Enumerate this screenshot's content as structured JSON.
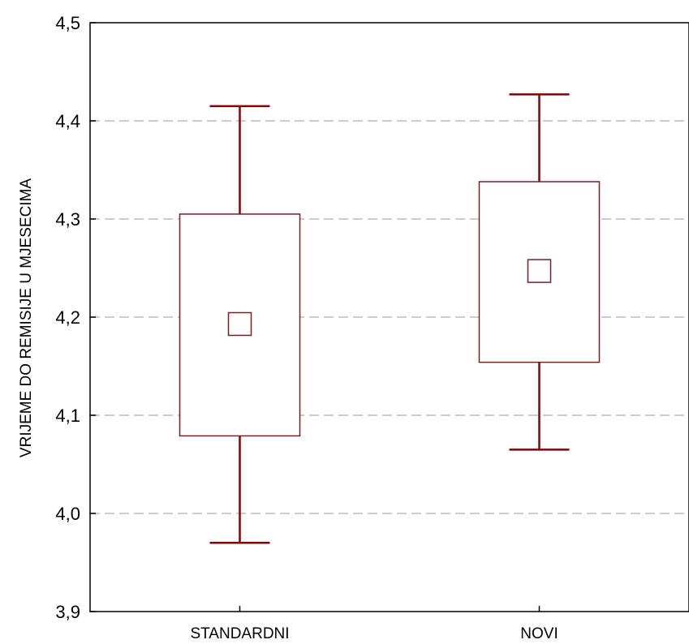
{
  "chart_data": {
    "type": "box",
    "title": "",
    "xlabel": "",
    "ylabel": "VRIJEME DO REMISIJE U MJESECIMA",
    "ylim": [
      3.9,
      4.5
    ],
    "yticks": [
      3.9,
      4.0,
      4.1,
      4.2,
      4.3,
      4.4,
      4.5
    ],
    "ytick_labels": [
      "3,9",
      "4,0",
      "4,1",
      "4,2",
      "4,3",
      "4,4",
      "4,5"
    ],
    "grid": true,
    "categories": [
      "STANDARDNI",
      "NOVI"
    ],
    "boxes": [
      {
        "category": "STANDARDNI",
        "center": 4.193,
        "box_low": 4.079,
        "box_high": 4.305,
        "whisker_low": 3.97,
        "whisker_high": 4.415
      },
      {
        "category": "NOVI",
        "center": 4.247,
        "box_low": 4.154,
        "box_high": 4.338,
        "whisker_low": 4.065,
        "whisker_high": 4.427
      }
    ],
    "colors": {
      "whisker": "#8b0000",
      "box": "#7a1f1f",
      "grid": "#cccccc",
      "axis": "#000000"
    }
  }
}
